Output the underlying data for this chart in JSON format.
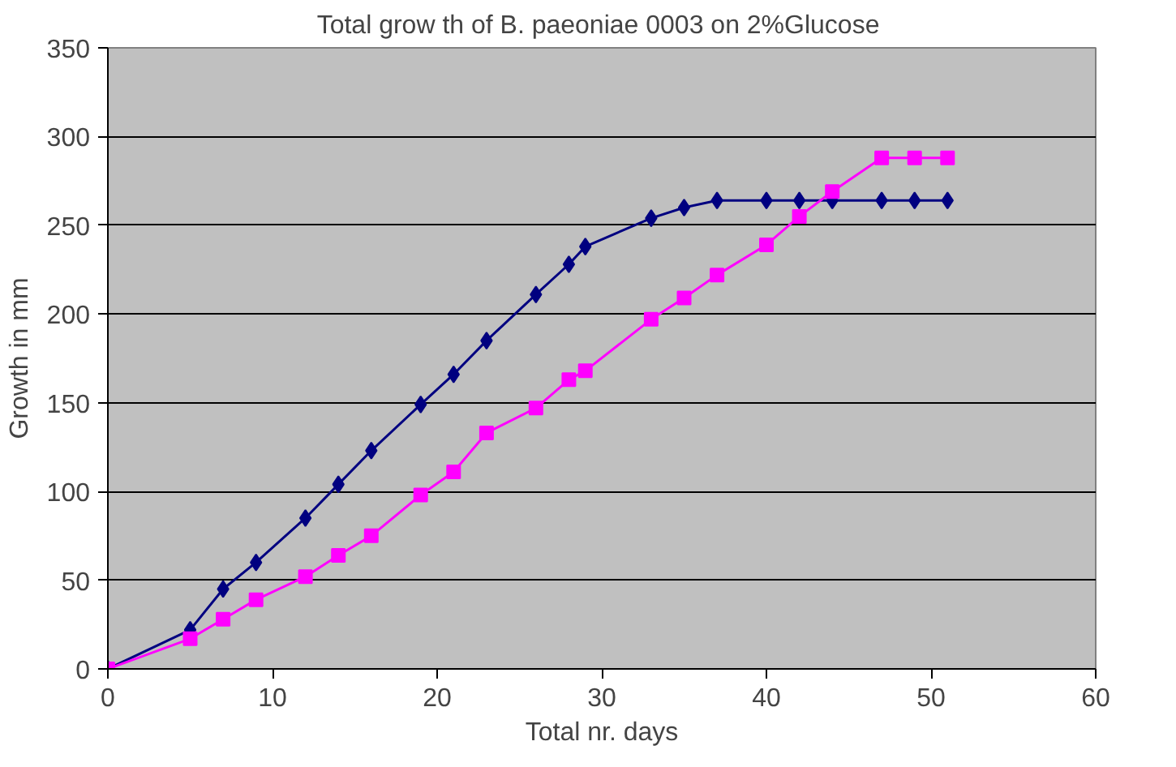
{
  "chart_data": {
    "type": "line",
    "title": "Total grow th of  B. paeoniae 0003 on 2%Glucose",
    "xlabel": "Total nr. days",
    "ylabel": "Growth in mm",
    "xlim": [
      0,
      60
    ],
    "xticks": [
      0,
      10,
      20,
      30,
      40,
      50,
      60
    ],
    "ylim": [
      0,
      350
    ],
    "yticks": [
      0,
      50,
      100,
      150,
      200,
      250,
      300,
      350
    ],
    "grid": "y",
    "x": [
      0,
      5,
      7,
      9,
      12,
      14,
      16,
      19,
      21,
      23,
      26,
      28,
      29,
      33,
      35,
      37,
      40,
      42,
      44,
      47,
      49,
      51
    ],
    "series": [
      {
        "color": "#000080",
        "marker": "diamond",
        "values": [
          0,
          22,
          45,
          60,
          85,
          104,
          123,
          149,
          166,
          185,
          211,
          228,
          238,
          254,
          260,
          264,
          264,
          264,
          264,
          264,
          264,
          264
        ]
      },
      {
        "color": "#ff00ff",
        "marker": "square",
        "values": [
          0,
          17,
          28,
          39,
          52,
          64,
          75,
          98,
          111,
          133,
          147,
          163,
          168,
          197,
          209,
          222,
          239,
          255,
          269,
          288,
          288,
          288
        ]
      }
    ]
  }
}
